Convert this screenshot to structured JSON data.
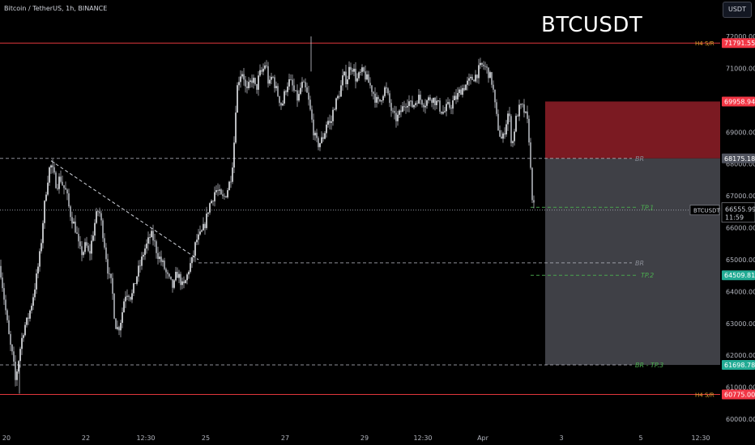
{
  "header": {
    "symbol_line": "Bitcoin / TetherUS, 1h, BINANCE",
    "currency_button": "USDT",
    "watermark": "BTCUSDT"
  },
  "colors": {
    "background": "#000000",
    "grid_text": "#b2b5be",
    "red_line": "#e0373c",
    "green_text": "#4caf50",
    "red_zone": "#7b1a22",
    "grey_zone": "#3f4046",
    "price_tag_red": "#f23645",
    "price_tag_green": "#22ab94",
    "price_tag_grey": "#50535e"
  },
  "chart_data": {
    "type": "candlestick",
    "title": "BTCUSDT",
    "y_axis": {
      "min": 60000,
      "max": 72000,
      "scale": "linear",
      "ticks": [
        "72000.00",
        "71000.00",
        "70000.00",
        "69000.00",
        "68000.00",
        "67000.00",
        "66000.00",
        "65000.00",
        "64000.00",
        "63000.00",
        "62000.00",
        "61000.00",
        "60000.00"
      ]
    },
    "x_axis": {
      "ticks": [
        "20",
        "22",
        "12:30",
        "25",
        "27",
        "29",
        "12:30",
        "Apr",
        "3",
        "5",
        "12:30"
      ]
    },
    "close_path": [
      {
        "i": 0,
        "v": 64800
      },
      {
        "i": 4,
        "v": 64000
      },
      {
        "i": 8,
        "v": 63200
      },
      {
        "i": 12,
        "v": 62400
      },
      {
        "i": 16,
        "v": 61900
      },
      {
        "i": 19,
        "v": 61200
      },
      {
        "i": 22,
        "v": 61700
      },
      {
        "i": 26,
        "v": 62400
      },
      {
        "i": 30,
        "v": 62900
      },
      {
        "i": 34,
        "v": 63100
      },
      {
        "i": 38,
        "v": 63500
      },
      {
        "i": 42,
        "v": 64000
      },
      {
        "i": 46,
        "v": 64600
      },
      {
        "i": 50,
        "v": 65300
      },
      {
        "i": 54,
        "v": 66500
      },
      {
        "i": 58,
        "v": 67400
      },
      {
        "i": 62,
        "v": 68000
      },
      {
        "i": 66,
        "v": 67700
      },
      {
        "i": 70,
        "v": 67300
      },
      {
        "i": 74,
        "v": 67600
      },
      {
        "i": 78,
        "v": 67300
      },
      {
        "i": 82,
        "v": 67100
      },
      {
        "i": 86,
        "v": 66500
      },
      {
        "i": 90,
        "v": 66200
      },
      {
        "i": 94,
        "v": 65900
      },
      {
        "i": 98,
        "v": 65300
      },
      {
        "i": 102,
        "v": 65200
      },
      {
        "i": 106,
        "v": 65500
      },
      {
        "i": 110,
        "v": 65100
      },
      {
        "i": 114,
        "v": 65700
      },
      {
        "i": 118,
        "v": 66300
      },
      {
        "i": 122,
        "v": 66600
      },
      {
        "i": 126,
        "v": 66000
      },
      {
        "i": 130,
        "v": 65300
      },
      {
        "i": 134,
        "v": 64500
      },
      {
        "i": 138,
        "v": 64200
      },
      {
        "i": 142,
        "v": 63000
      },
      {
        "i": 146,
        "v": 62800
      },
      {
        "i": 150,
        "v": 63200
      },
      {
        "i": 154,
        "v": 63900
      },
      {
        "i": 158,
        "v": 64000
      },
      {
        "i": 162,
        "v": 63800
      },
      {
        "i": 166,
        "v": 64200
      },
      {
        "i": 170,
        "v": 64600
      },
      {
        "i": 174,
        "v": 64900
      },
      {
        "i": 178,
        "v": 65300
      },
      {
        "i": 182,
        "v": 65500
      },
      {
        "i": 186,
        "v": 65800
      },
      {
        "i": 190,
        "v": 65600
      },
      {
        "i": 194,
        "v": 65200
      },
      {
        "i": 198,
        "v": 65000
      },
      {
        "i": 202,
        "v": 64800
      },
      {
        "i": 206,
        "v": 64500
      },
      {
        "i": 210,
        "v": 64300
      },
      {
        "i": 214,
        "v": 64100
      },
      {
        "i": 218,
        "v": 64600
      },
      {
        "i": 222,
        "v": 64400
      },
      {
        "i": 226,
        "v": 64100
      },
      {
        "i": 230,
        "v": 64400
      },
      {
        "i": 234,
        "v": 64800
      },
      {
        "i": 238,
        "v": 65000
      },
      {
        "i": 242,
        "v": 65600
      },
      {
        "i": 246,
        "v": 65700
      },
      {
        "i": 250,
        "v": 65900
      },
      {
        "i": 254,
        "v": 66200
      },
      {
        "i": 258,
        "v": 66700
      },
      {
        "i": 262,
        "v": 66900
      },
      {
        "i": 266,
        "v": 67200
      },
      {
        "i": 270,
        "v": 67100
      },
      {
        "i": 274,
        "v": 66900
      },
      {
        "i": 278,
        "v": 67000
      },
      {
        "i": 282,
        "v": 67300
      },
      {
        "i": 286,
        "v": 67700
      },
      {
        "i": 289,
        "v": 68700
      },
      {
        "i": 292,
        "v": 70300
      },
      {
        "i": 296,
        "v": 70800
      },
      {
        "i": 300,
        "v": 70900
      },
      {
        "i": 304,
        "v": 70200
      },
      {
        "i": 308,
        "v": 70500
      },
      {
        "i": 312,
        "v": 70700
      },
      {
        "i": 316,
        "v": 70300
      },
      {
        "i": 320,
        "v": 70800
      },
      {
        "i": 324,
        "v": 70900
      },
      {
        "i": 328,
        "v": 71200
      },
      {
        "i": 332,
        "v": 70400
      },
      {
        "i": 336,
        "v": 70800
      },
      {
        "i": 340,
        "v": 70400
      },
      {
        "i": 344,
        "v": 70100
      },
      {
        "i": 348,
        "v": 69800
      },
      {
        "i": 352,
        "v": 70300
      },
      {
        "i": 356,
        "v": 70600
      },
      {
        "i": 360,
        "v": 70500
      },
      {
        "i": 364,
        "v": 70200
      },
      {
        "i": 368,
        "v": 70000
      },
      {
        "i": 372,
        "v": 70500
      },
      {
        "i": 376,
        "v": 70400
      },
      {
        "i": 380,
        "v": 70100
      },
      {
        "i": 384,
        "v": 69500
      },
      {
        "i": 388,
        "v": 68900
      },
      {
        "i": 392,
        "v": 68600
      },
      {
        "i": 396,
        "v": 68700
      },
      {
        "i": 400,
        "v": 68900
      },
      {
        "i": 404,
        "v": 69400
      },
      {
        "i": 408,
        "v": 69200
      },
      {
        "i": 412,
        "v": 69800
      },
      {
        "i": 416,
        "v": 70000
      },
      {
        "i": 420,
        "v": 70300
      },
      {
        "i": 424,
        "v": 70800
      },
      {
        "i": 428,
        "v": 70600
      },
      {
        "i": 432,
        "v": 71100
      },
      {
        "i": 436,
        "v": 71000
      },
      {
        "i": 440,
        "v": 70600
      },
      {
        "i": 444,
        "v": 70800
      },
      {
        "i": 448,
        "v": 70900
      },
      {
        "i": 452,
        "v": 70700
      },
      {
        "i": 456,
        "v": 70500
      },
      {
        "i": 460,
        "v": 70300
      },
      {
        "i": 464,
        "v": 70000
      },
      {
        "i": 468,
        "v": 69900
      },
      {
        "i": 472,
        "v": 70200
      },
      {
        "i": 476,
        "v": 70400
      },
      {
        "i": 480,
        "v": 70000
      },
      {
        "i": 484,
        "v": 69600
      },
      {
        "i": 488,
        "v": 69400
      },
      {
        "i": 492,
        "v": 69500
      },
      {
        "i": 496,
        "v": 69700
      },
      {
        "i": 500,
        "v": 69900
      },
      {
        "i": 504,
        "v": 70000
      },
      {
        "i": 508,
        "v": 69800
      },
      {
        "i": 512,
        "v": 69900
      },
      {
        "i": 516,
        "v": 70100
      },
      {
        "i": 520,
        "v": 70000
      },
      {
        "i": 524,
        "v": 69900
      },
      {
        "i": 528,
        "v": 70000
      },
      {
        "i": 532,
        "v": 70100
      },
      {
        "i": 536,
        "v": 70000
      },
      {
        "i": 540,
        "v": 69900
      },
      {
        "i": 544,
        "v": 69700
      },
      {
        "i": 548,
        "v": 69600
      },
      {
        "i": 552,
        "v": 69800
      },
      {
        "i": 556,
        "v": 69800
      },
      {
        "i": 560,
        "v": 70000
      },
      {
        "i": 564,
        "v": 70100
      },
      {
        "i": 568,
        "v": 70300
      },
      {
        "i": 572,
        "v": 70400
      },
      {
        "i": 576,
        "v": 70500
      },
      {
        "i": 580,
        "v": 70600
      },
      {
        "i": 584,
        "v": 70700
      },
      {
        "i": 588,
        "v": 70800
      },
      {
        "i": 592,
        "v": 71000
      },
      {
        "i": 596,
        "v": 71100
      },
      {
        "i": 600,
        "v": 71000
      },
      {
        "i": 604,
        "v": 70800
      },
      {
        "i": 608,
        "v": 70500
      },
      {
        "i": 612,
        "v": 69600
      },
      {
        "i": 616,
        "v": 69000
      },
      {
        "i": 620,
        "v": 68700
      },
      {
        "i": 624,
        "v": 69200
      },
      {
        "i": 628,
        "v": 69700
      },
      {
        "i": 632,
        "v": 68500
      },
      {
        "i": 636,
        "v": 69300
      },
      {
        "i": 640,
        "v": 69700
      },
      {
        "i": 644,
        "v": 69800
      },
      {
        "i": 648,
        "v": 69600
      },
      {
        "i": 652,
        "v": 69200
      },
      {
        "i": 654,
        "v": 68400
      },
      {
        "i": 656,
        "v": 67200
      },
      {
        "i": 658,
        "v": 66800
      },
      {
        "i": 660,
        "v": 66500
      }
    ],
    "horizontal_levels": [
      {
        "price": 71791.55,
        "label": "H4  S/R",
        "style": "solid",
        "color": "#e0373c"
      },
      {
        "price": 60775.0,
        "label": "H4  S/R",
        "style": "solid",
        "color": "#e0373c"
      },
      {
        "price": 68175.18,
        "label": "BR",
        "style": "dashed"
      },
      {
        "price": 64900.0,
        "label": "BR",
        "style": "dashed"
      },
      {
        "price": 61698.78,
        "label": "BR - TP.3",
        "style": "dashed"
      },
      {
        "price": 66555.99,
        "label": "",
        "style": "dotted"
      }
    ],
    "targets": [
      {
        "label": "TP.1",
        "price": 66640.0
      },
      {
        "label": "TP.2",
        "price": 64509.81
      }
    ],
    "trendline": {
      "from": {
        "i": 63,
        "v": 68100
      },
      "to": {
        "i": 245,
        "v": 65000
      }
    },
    "position_zones": {
      "stop_zone": {
        "from": 69958.94,
        "to": 68175.18
      },
      "target_zone": {
        "from": 68175.18,
        "to": 61698.78
      }
    },
    "price_tags": [
      {
        "text": "71791.55",
        "price": 71791.55,
        "kind": "red"
      },
      {
        "text": "69958.94",
        "price": 69958.94,
        "kind": "red"
      },
      {
        "text": "68175.18",
        "price": 68175.18,
        "kind": "grey"
      },
      {
        "text": "66555.99",
        "price": 66555.99,
        "kind": "current"
      },
      {
        "text": "64509.81",
        "price": 64509.81,
        "kind": "green"
      },
      {
        "text": "61698.78",
        "price": 61698.78,
        "kind": "green"
      },
      {
        "text": "60775.00",
        "price": 60775.0,
        "kind": "red"
      }
    ],
    "current_price": {
      "symbol": "BTCUSDT",
      "price": "66555.99",
      "countdown": "11:59"
    }
  }
}
